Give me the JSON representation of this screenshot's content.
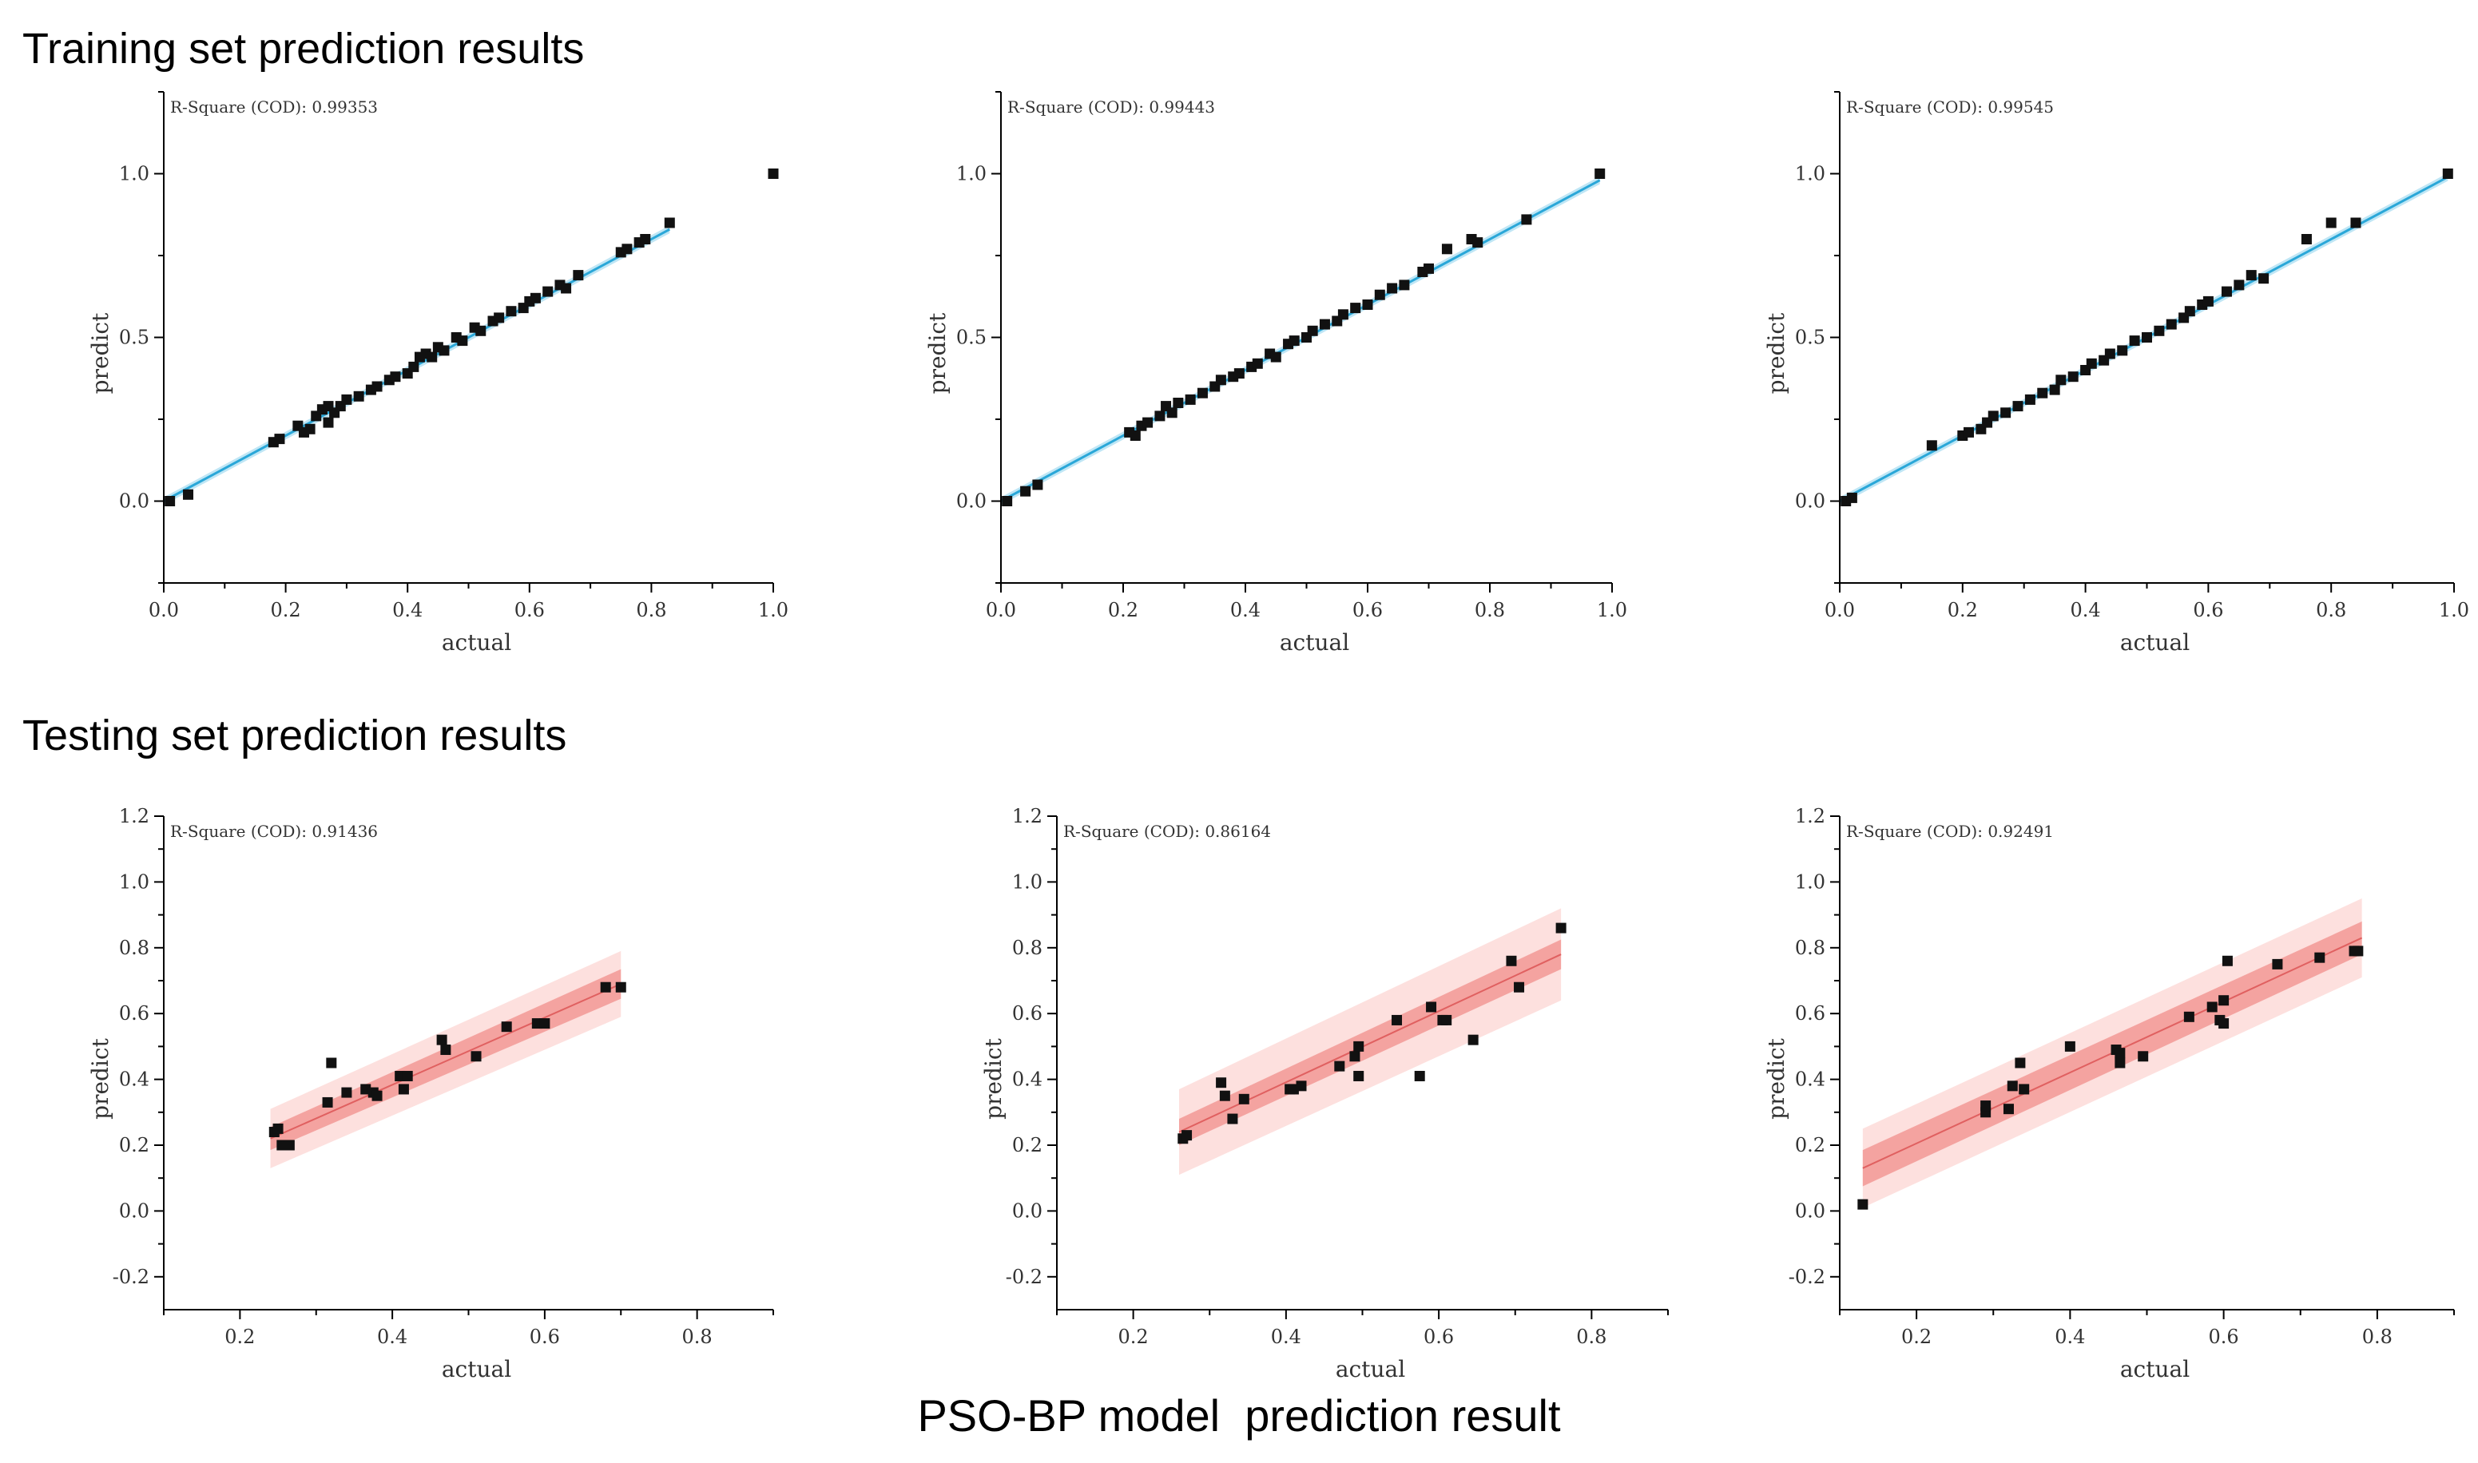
{
  "headings": {
    "training": "Training set prediction results",
    "testing": "Testing set prediction results",
    "footer": "PSO-BP model  prediction result"
  },
  "colors": {
    "train_line": "#2aa7d8",
    "train_band": "#bfe6f5",
    "test_line": "#e06060",
    "test_ci": "#f4a3a0",
    "test_pi": "#fde0de",
    "point": "#111111"
  },
  "chart_data": [
    {
      "type": "scatter",
      "set": "training",
      "xlabel": "actual",
      "ylabel": "predict",
      "r2_label": "R-Square (COD): 0.99353",
      "xlim": [
        0,
        1
      ],
      "ylim": [
        -0.25,
        1.25
      ],
      "xticks": [
        "0.0",
        "0.2",
        "0.4",
        "0.6",
        "0.8",
        "1.0"
      ],
      "xtickvals": [
        0,
        0.2,
        0.4,
        0.6,
        0.8,
        1.0
      ],
      "yticks": [
        "0.0",
        "0.5",
        "1.0"
      ],
      "ytickvals": [
        0,
        0.5,
        1.0
      ],
      "fit": {
        "x0": 0.0,
        "x1": 0.83,
        "slope": 1.0,
        "intercept": 0.0
      },
      "band": 0.012,
      "points": [
        [
          0.01,
          0.0
        ],
        [
          0.04,
          0.02
        ],
        [
          0.18,
          0.18
        ],
        [
          0.19,
          0.19
        ],
        [
          0.22,
          0.23
        ],
        [
          0.23,
          0.21
        ],
        [
          0.24,
          0.22
        ],
        [
          0.25,
          0.26
        ],
        [
          0.26,
          0.28
        ],
        [
          0.27,
          0.29
        ],
        [
          0.27,
          0.24
        ],
        [
          0.28,
          0.27
        ],
        [
          0.29,
          0.29
        ],
        [
          0.3,
          0.31
        ],
        [
          0.32,
          0.32
        ],
        [
          0.34,
          0.34
        ],
        [
          0.35,
          0.35
        ],
        [
          0.37,
          0.37
        ],
        [
          0.38,
          0.38
        ],
        [
          0.4,
          0.39
        ],
        [
          0.41,
          0.41
        ],
        [
          0.42,
          0.44
        ],
        [
          0.43,
          0.45
        ],
        [
          0.44,
          0.44
        ],
        [
          0.45,
          0.47
        ],
        [
          0.46,
          0.46
        ],
        [
          0.48,
          0.5
        ],
        [
          0.49,
          0.49
        ],
        [
          0.51,
          0.53
        ],
        [
          0.52,
          0.52
        ],
        [
          0.54,
          0.55
        ],
        [
          0.55,
          0.56
        ],
        [
          0.57,
          0.58
        ],
        [
          0.59,
          0.59
        ],
        [
          0.6,
          0.61
        ],
        [
          0.61,
          0.62
        ],
        [
          0.63,
          0.64
        ],
        [
          0.65,
          0.66
        ],
        [
          0.66,
          0.65
        ],
        [
          0.68,
          0.69
        ],
        [
          0.75,
          0.76
        ],
        [
          0.76,
          0.77
        ],
        [
          0.78,
          0.79
        ],
        [
          0.79,
          0.8
        ],
        [
          0.83,
          0.85
        ],
        [
          1.0,
          1.0
        ]
      ]
    },
    {
      "type": "scatter",
      "set": "training",
      "xlabel": "actual",
      "ylabel": "predict",
      "r2_label": "R-Square (COD): 0.99443",
      "xlim": [
        0,
        1
      ],
      "ylim": [
        -0.25,
        1.25
      ],
      "xticks": [
        "0.0",
        "0.2",
        "0.4",
        "0.6",
        "0.8",
        "1.0"
      ],
      "xtickvals": [
        0,
        0.2,
        0.4,
        0.6,
        0.8,
        1.0
      ],
      "yticks": [
        "0.0",
        "0.5",
        "1.0"
      ],
      "ytickvals": [
        0,
        0.5,
        1.0
      ],
      "fit": {
        "x0": 0.0,
        "x1": 0.98,
        "slope": 1.0,
        "intercept": 0.0
      },
      "band": 0.012,
      "points": [
        [
          0.01,
          0.0
        ],
        [
          0.04,
          0.03
        ],
        [
          0.06,
          0.05
        ],
        [
          0.21,
          0.21
        ],
        [
          0.22,
          0.2
        ],
        [
          0.23,
          0.23
        ],
        [
          0.24,
          0.24
        ],
        [
          0.26,
          0.26
        ],
        [
          0.27,
          0.29
        ],
        [
          0.28,
          0.27
        ],
        [
          0.29,
          0.3
        ],
        [
          0.31,
          0.31
        ],
        [
          0.33,
          0.33
        ],
        [
          0.35,
          0.35
        ],
        [
          0.36,
          0.37
        ],
        [
          0.38,
          0.38
        ],
        [
          0.39,
          0.39
        ],
        [
          0.41,
          0.41
        ],
        [
          0.42,
          0.42
        ],
        [
          0.44,
          0.45
        ],
        [
          0.45,
          0.44
        ],
        [
          0.47,
          0.48
        ],
        [
          0.48,
          0.49
        ],
        [
          0.5,
          0.5
        ],
        [
          0.51,
          0.52
        ],
        [
          0.53,
          0.54
        ],
        [
          0.55,
          0.55
        ],
        [
          0.56,
          0.57
        ],
        [
          0.58,
          0.59
        ],
        [
          0.6,
          0.6
        ],
        [
          0.62,
          0.63
        ],
        [
          0.64,
          0.65
        ],
        [
          0.66,
          0.66
        ],
        [
          0.69,
          0.7
        ],
        [
          0.7,
          0.71
        ],
        [
          0.73,
          0.77
        ],
        [
          0.77,
          0.8
        ],
        [
          0.78,
          0.79
        ],
        [
          0.86,
          0.86
        ],
        [
          0.98,
          1.0
        ]
      ]
    },
    {
      "type": "scatter",
      "set": "training",
      "xlabel": "actual",
      "ylabel": "predict",
      "r2_label": "R-Square (COD): 0.99545",
      "xlim": [
        0,
        1
      ],
      "ylim": [
        -0.25,
        1.25
      ],
      "xticks": [
        "0.0",
        "0.2",
        "0.4",
        "0.6",
        "0.8",
        "1.0"
      ],
      "xtickvals": [
        0,
        0.2,
        0.4,
        0.6,
        0.8,
        1.0
      ],
      "yticks": [
        "0.0",
        "0.5",
        "1.0"
      ],
      "ytickvals": [
        0,
        0.5,
        1.0
      ],
      "fit": {
        "x0": 0.0,
        "x1": 0.99,
        "slope": 1.0,
        "intercept": 0.0
      },
      "band": 0.012,
      "points": [
        [
          0.01,
          0.0
        ],
        [
          0.02,
          0.01
        ],
        [
          0.15,
          0.17
        ],
        [
          0.2,
          0.2
        ],
        [
          0.21,
          0.21
        ],
        [
          0.23,
          0.22
        ],
        [
          0.24,
          0.24
        ],
        [
          0.25,
          0.26
        ],
        [
          0.27,
          0.27
        ],
        [
          0.29,
          0.29
        ],
        [
          0.31,
          0.31
        ],
        [
          0.33,
          0.33
        ],
        [
          0.35,
          0.34
        ],
        [
          0.36,
          0.37
        ],
        [
          0.38,
          0.38
        ],
        [
          0.4,
          0.4
        ],
        [
          0.41,
          0.42
        ],
        [
          0.43,
          0.43
        ],
        [
          0.44,
          0.45
        ],
        [
          0.46,
          0.46
        ],
        [
          0.48,
          0.49
        ],
        [
          0.5,
          0.5
        ],
        [
          0.52,
          0.52
        ],
        [
          0.54,
          0.54
        ],
        [
          0.56,
          0.56
        ],
        [
          0.57,
          0.58
        ],
        [
          0.59,
          0.6
        ],
        [
          0.6,
          0.61
        ],
        [
          0.63,
          0.64
        ],
        [
          0.65,
          0.66
        ],
        [
          0.67,
          0.69
        ],
        [
          0.69,
          0.68
        ],
        [
          0.76,
          0.8
        ],
        [
          0.8,
          0.85
        ],
        [
          0.84,
          0.85
        ],
        [
          0.99,
          1.0
        ]
      ]
    },
    {
      "type": "scatter",
      "set": "testing",
      "xlabel": "actual",
      "ylabel": "predict",
      "r2_label": "R-Square (COD): 0.91436",
      "xlim": [
        0.1,
        0.9
      ],
      "ylim": [
        -0.3,
        1.2
      ],
      "xticks": [
        "0.2",
        "0.4",
        "0.6",
        "0.8"
      ],
      "xtickvals": [
        0.2,
        0.4,
        0.6,
        0.8
      ],
      "yticks": [
        "-0.2",
        "0.0",
        "0.2",
        "0.4",
        "0.6",
        "0.8",
        "1.0",
        "1.2"
      ],
      "ytickvals": [
        -0.2,
        0,
        0.2,
        0.4,
        0.6,
        0.8,
        1.0,
        1.2
      ],
      "fit": {
        "x0": 0.24,
        "x1": 0.7,
        "y0": 0.22,
        "y1": 0.69
      },
      "ci": [
        0.035,
        0.045
      ],
      "pi": [
        0.09,
        0.1
      ],
      "points": [
        [
          0.245,
          0.24
        ],
        [
          0.25,
          0.25
        ],
        [
          0.255,
          0.2
        ],
        [
          0.265,
          0.2
        ],
        [
          0.315,
          0.33
        ],
        [
          0.32,
          0.45
        ],
        [
          0.34,
          0.36
        ],
        [
          0.365,
          0.37
        ],
        [
          0.375,
          0.36
        ],
        [
          0.38,
          0.35
        ],
        [
          0.41,
          0.41
        ],
        [
          0.415,
          0.37
        ],
        [
          0.42,
          0.41
        ],
        [
          0.465,
          0.52
        ],
        [
          0.47,
          0.49
        ],
        [
          0.51,
          0.47
        ],
        [
          0.55,
          0.56
        ],
        [
          0.59,
          0.57
        ],
        [
          0.6,
          0.57
        ],
        [
          0.68,
          0.68
        ],
        [
          0.7,
          0.68
        ]
      ]
    },
    {
      "type": "scatter",
      "set": "testing",
      "xlabel": "actual",
      "ylabel": "predict",
      "r2_label": "R-Square (COD): 0.86164",
      "xlim": [
        0.1,
        0.9
      ],
      "ylim": [
        -0.3,
        1.2
      ],
      "xticks": [
        "0.2",
        "0.4",
        "0.6",
        "0.8"
      ],
      "xtickvals": [
        0.2,
        0.4,
        0.6,
        0.8
      ],
      "yticks": [
        "-0.2",
        "0.0",
        "0.2",
        "0.4",
        "0.6",
        "0.8",
        "1.0",
        "1.2"
      ],
      "ytickvals": [
        -0.2,
        0,
        0.2,
        0.4,
        0.6,
        0.8,
        1.0,
        1.2
      ],
      "fit": {
        "x0": 0.26,
        "x1": 0.76,
        "y0": 0.24,
        "y1": 0.78
      },
      "ci": [
        0.04,
        0.045
      ],
      "pi": [
        0.13,
        0.14
      ],
      "points": [
        [
          0.265,
          0.22
        ],
        [
          0.27,
          0.23
        ],
        [
          0.315,
          0.39
        ],
        [
          0.32,
          0.35
        ],
        [
          0.33,
          0.28
        ],
        [
          0.345,
          0.34
        ],
        [
          0.405,
          0.37
        ],
        [
          0.41,
          0.37
        ],
        [
          0.42,
          0.38
        ],
        [
          0.47,
          0.44
        ],
        [
          0.49,
          0.47
        ],
        [
          0.495,
          0.41
        ],
        [
          0.495,
          0.5
        ],
        [
          0.545,
          0.58
        ],
        [
          0.575,
          0.41
        ],
        [
          0.59,
          0.62
        ],
        [
          0.605,
          0.58
        ],
        [
          0.61,
          0.58
        ],
        [
          0.645,
          0.52
        ],
        [
          0.695,
          0.76
        ],
        [
          0.705,
          0.68
        ],
        [
          0.76,
          0.86
        ]
      ]
    },
    {
      "type": "scatter",
      "set": "testing",
      "xlabel": "actual",
      "ylabel": "predict",
      "r2_label": "R-Square (COD): 0.92491",
      "xlim": [
        0.1,
        0.9
      ],
      "ylim": [
        -0.3,
        1.2
      ],
      "xticks": [
        "0.2",
        "0.4",
        "0.6",
        "0.8"
      ],
      "xtickvals": [
        0.2,
        0.4,
        0.6,
        0.8
      ],
      "yticks": [
        "-0.2",
        "0.0",
        "0.2",
        "0.4",
        "0.6",
        "0.8",
        "1.0",
        "1.2"
      ],
      "ytickvals": [
        -0.2,
        0,
        0.2,
        0.4,
        0.6,
        0.8,
        1.0,
        1.2
      ],
      "fit": {
        "x0": 0.13,
        "x1": 0.78,
        "y0": 0.13,
        "y1": 0.83
      },
      "ci": [
        0.055,
        0.05
      ],
      "pi": [
        0.12,
        0.12
      ],
      "points": [
        [
          0.13,
          0.02
        ],
        [
          0.29,
          0.3
        ],
        [
          0.29,
          0.32
        ],
        [
          0.32,
          0.31
        ],
        [
          0.325,
          0.38
        ],
        [
          0.335,
          0.45
        ],
        [
          0.34,
          0.37
        ],
        [
          0.4,
          0.5
        ],
        [
          0.46,
          0.49
        ],
        [
          0.465,
          0.48
        ],
        [
          0.465,
          0.45
        ],
        [
          0.495,
          0.47
        ],
        [
          0.555,
          0.59
        ],
        [
          0.585,
          0.62
        ],
        [
          0.595,
          0.58
        ],
        [
          0.6,
          0.57
        ],
        [
          0.6,
          0.64
        ],
        [
          0.605,
          0.76
        ],
        [
          0.67,
          0.75
        ],
        [
          0.725,
          0.77
        ],
        [
          0.77,
          0.79
        ],
        [
          0.775,
          0.79
        ]
      ]
    }
  ]
}
